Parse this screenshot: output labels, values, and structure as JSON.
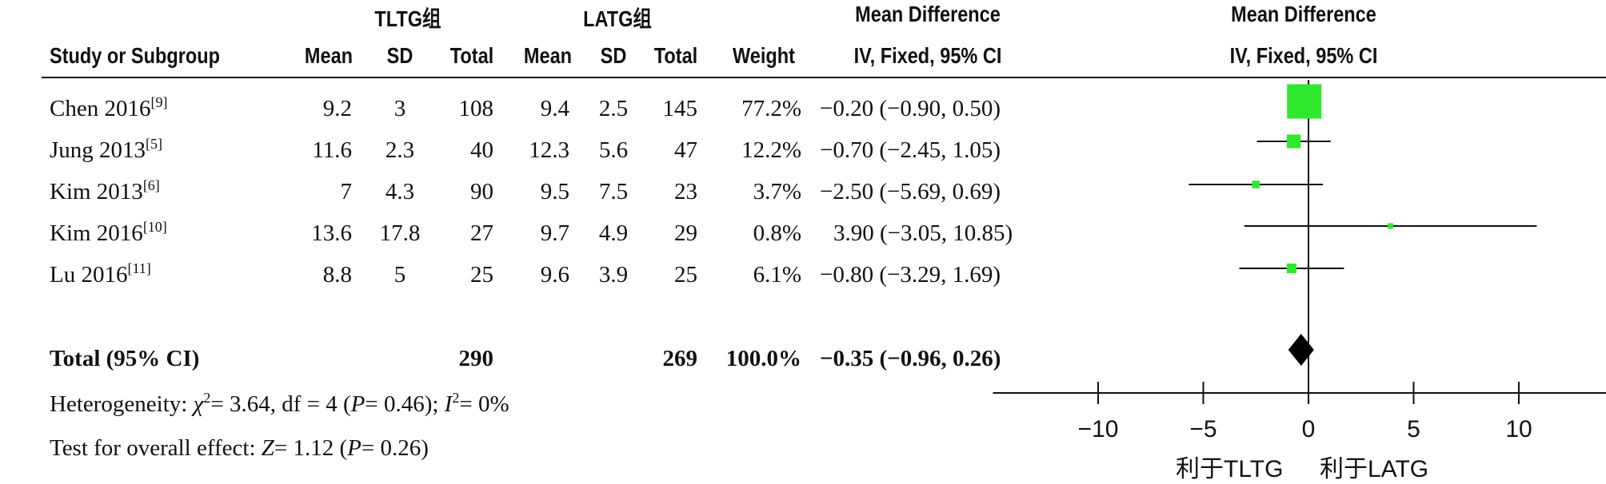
{
  "header": {
    "group1": "TLTG组",
    "group2": "LATG组",
    "md_title": "Mean Difference",
    "md_method": "IV, Fixed, 95% CI",
    "plot_title": "Mean Difference",
    "plot_method": "IV, Fixed, 95% CI",
    "cols": {
      "study": "Study or Subgroup",
      "mean1": "Mean",
      "sd1": "SD",
      "total1": "Total",
      "mean2": "Mean",
      "sd2": "SD",
      "total2": "Total",
      "weight": "Weight"
    }
  },
  "studies": [
    {
      "name": "Chen 2016",
      "ref": "[9]",
      "mean1": "9.2",
      "sd1": "3",
      "n1": "108",
      "mean2": "9.4",
      "sd2": "2.5",
      "n2": "145",
      "weight": "77.2%",
      "ci": "−0.20 (−0.90, 0.50)"
    },
    {
      "name": "Jung 2013",
      "ref": "[5]",
      "mean1": "11.6",
      "sd1": "2.3",
      "n1": "40",
      "mean2": "12.3",
      "sd2": "5.6",
      "n2": "47",
      "weight": "12.2%",
      "ci": "−0.70 (−2.45, 1.05)"
    },
    {
      "name": "Kim 2013",
      "ref": "[6]",
      "mean1": "7",
      "sd1": "4.3",
      "n1": "90",
      "mean2": "9.5",
      "sd2": "7.5",
      "n2": "23",
      "weight": "3.7%",
      "ci": "−2.50 (−5.69, 0.69)"
    },
    {
      "name": "Kim 2016",
      "ref": "[10]",
      "mean1": "13.6",
      "sd1": "17.8",
      "n1": "27",
      "mean2": "9.7",
      "sd2": "4.9",
      "n2": "29",
      "weight": "0.8%",
      "ci": "3.90 (−3.05, 10.85)"
    },
    {
      "name": "Lu 2016",
      "ref": "[11]",
      "mean1": "8.8",
      "sd1": "5",
      "n1": "25",
      "mean2": "9.6",
      "sd2": "3.9",
      "n2": "25",
      "weight": "6.1%",
      "ci": "−0.80 (−3.29, 1.69)"
    }
  ],
  "total": {
    "label": "Total (95% CI)",
    "n1": "290",
    "n2": "269",
    "weight": "100.0%",
    "ci": "−0.35 (−0.96, 0.26)"
  },
  "heterogeneity": {
    "prefix": "Heterogeneity: ",
    "chi": "χ",
    "chi_exp": "2",
    "chi_rest": "= 3.64, df = 4 (",
    "p": "P",
    "p_rest": "= 0.46); ",
    "i": "I",
    "i_exp": "2",
    "i_rest": "= 0%"
  },
  "overall_effect": {
    "prefix": "Test for overall effect: ",
    "z": "Z",
    "z_rest": "= 1.12 (",
    "p": "P",
    "p_rest": "= 0.26)"
  },
  "axis": {
    "favours_left": "利于TLTG",
    "favours_right": "利于LATG"
  },
  "chart_data": {
    "type": "forest",
    "marker_color": "#2ee82e",
    "summary_color": "#000000",
    "xlim": [
      -15,
      15
    ],
    "ticks": [
      -10,
      -5,
      0,
      5,
      10
    ],
    "tick_labels": [
      "−10",
      "−5",
      "0",
      "5",
      "10"
    ],
    "studies": [
      {
        "name": "Chen 2016",
        "md": -0.2,
        "lo": -0.9,
        "hi": 0.5,
        "weight": 77.2
      },
      {
        "name": "Jung 2013",
        "md": -0.7,
        "lo": -2.45,
        "hi": 1.05,
        "weight": 12.2
      },
      {
        "name": "Kim 2013",
        "md": -2.5,
        "lo": -5.69,
        "hi": 0.69,
        "weight": 3.7
      },
      {
        "name": "Kim 2016",
        "md": 3.9,
        "lo": -3.05,
        "hi": 10.85,
        "weight": 0.8
      },
      {
        "name": "Lu 2016",
        "md": -0.8,
        "lo": -3.29,
        "hi": 1.69,
        "weight": 6.1
      }
    ],
    "summary": {
      "md": -0.35,
      "lo": -0.96,
      "hi": 0.26
    }
  }
}
